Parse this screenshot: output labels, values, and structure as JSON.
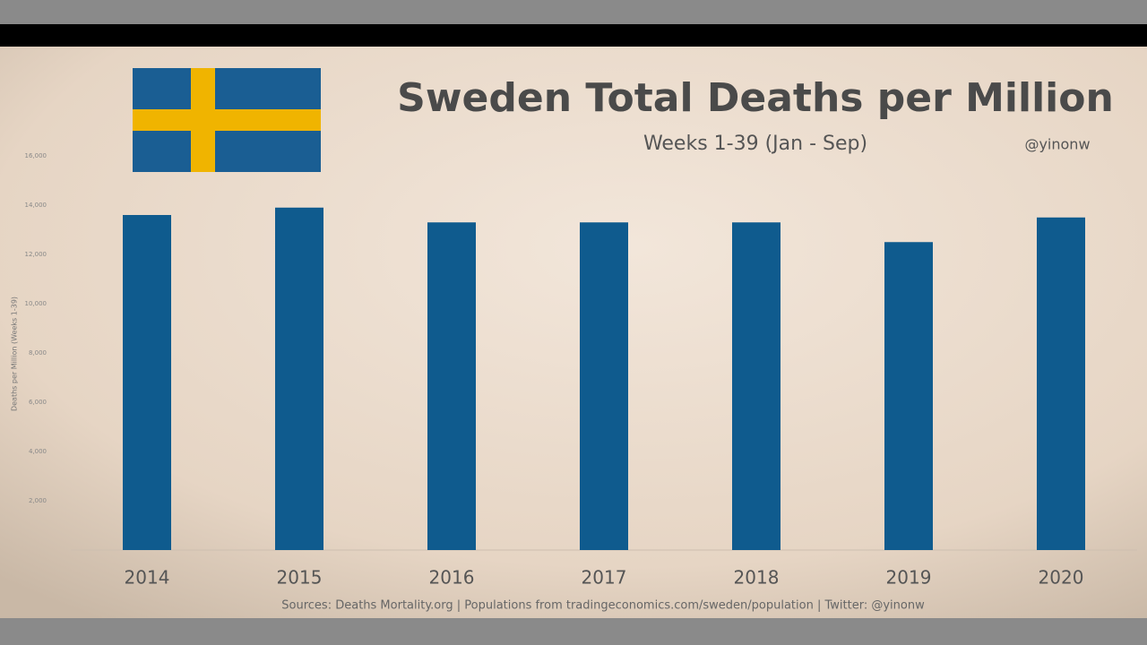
{
  "chart_data": {
    "type": "bar",
    "title": "Sweden Total Deaths per Million",
    "subtitle": "Weeks 1-39 (Jan - Sep)",
    "credit": "@yinonw",
    "source": "Sources: Deaths Mortality.org  |  Populations from tradingeconomics.com/sweden/population  |  Twitter: @yinonw",
    "y_label": "Deaths per Million (Weeks 1-39)",
    "categories": [
      "2014",
      "2015",
      "2016",
      "2017",
      "2018",
      "2019",
      "2020"
    ],
    "values": [
      13600,
      13900,
      13300,
      13300,
      13300,
      12500,
      13500
    ],
    "color": "#0f5b8e",
    "ylim": [
      0,
      16000
    ],
    "yticks": [
      {
        "value": 2000,
        "label": "2,000"
      },
      {
        "value": 4000,
        "label": "4,000"
      },
      {
        "value": 6000,
        "label": "6,000"
      },
      {
        "value": 8000,
        "label": "8,000"
      },
      {
        "value": 10000,
        "label": "10,000"
      },
      {
        "value": 12000,
        "label": "12,000"
      },
      {
        "value": 14000,
        "label": "14,000"
      },
      {
        "value": 16000,
        "label": "16,000"
      }
    ],
    "grid": false
  }
}
